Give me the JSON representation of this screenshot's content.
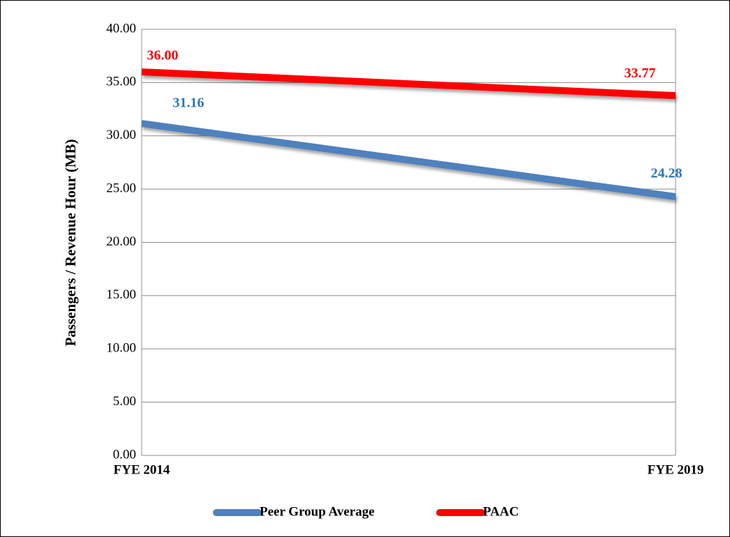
{
  "chart_data": {
    "type": "line",
    "y_label": "Passengers / Revenue Hour (MB)",
    "categories": [
      "FYE 2014",
      "FYE 2019"
    ],
    "series": [
      {
        "name": "Peer Group Average",
        "color": "#4f81bd",
        "label_color": "#2e75b6",
        "values": [
          31.16,
          24.28
        ],
        "value_labels": [
          "31.16",
          "24.28"
        ]
      },
      {
        "name": "PAAC",
        "color": "#ff0000",
        "label_color": "#ff0000",
        "values": [
          36,
          33.77
        ],
        "value_labels": [
          "36.00",
          "33.77"
        ]
      }
    ],
    "ylim": [
      0,
      40
    ],
    "yticks": [
      {
        "value": 0,
        "label": "0.00"
      },
      {
        "value": 5,
        "label": "5.00"
      },
      {
        "value": 10,
        "label": "10.00"
      },
      {
        "value": 15,
        "label": "15.00"
      },
      {
        "value": 20,
        "label": "20.00"
      },
      {
        "value": 25,
        "label": "25.00"
      },
      {
        "value": 30,
        "label": "30.00"
      },
      {
        "value": 35,
        "label": "35.00"
      },
      {
        "value": 40,
        "label": "40.00"
      }
    ],
    "grid": true,
    "legend": "bottom"
  }
}
